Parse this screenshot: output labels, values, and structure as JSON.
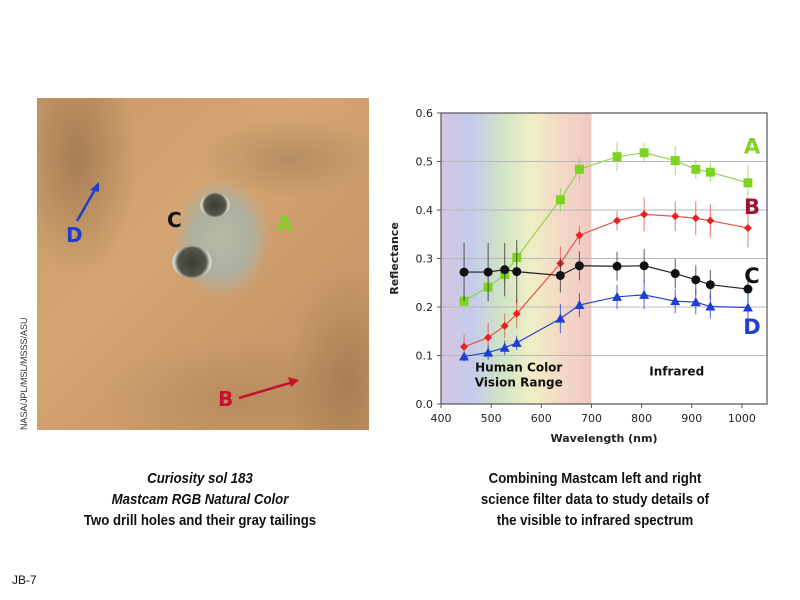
{
  "photo": {
    "labels": {
      "A": "A",
      "B": "B",
      "C": "C",
      "D": "D"
    },
    "label_colors": {
      "A": "#7ed321",
      "B": "#c8102e",
      "C": "#111111",
      "D": "#1f3fd1"
    },
    "credit": "NASA/JPL/MSL/MSSS/ASU"
  },
  "captions": {
    "left": {
      "line1": "Curiosity sol 183",
      "line2": "Mastcam RGB Natural Color",
      "line3": "Two drill holes and their gray tailings"
    },
    "right": {
      "line1": "Combining Mastcam left and right",
      "line2": "science filter data to study details of",
      "line3": "the visible to infrared spectrum"
    }
  },
  "slide_id": "JB-7",
  "chart_data": {
    "type": "line",
    "title": "",
    "xlabel": "Wavelength (nm)",
    "ylabel": "Reflectance",
    "xlim": [
      400,
      1050
    ],
    "ylim": [
      0.0,
      0.6
    ],
    "xticks": [
      400,
      500,
      600,
      700,
      800,
      900,
      1000
    ],
    "yticks": [
      0.0,
      0.1,
      0.2,
      0.3,
      0.4,
      0.5,
      0.6
    ],
    "ytick_labels": [
      "0.0",
      "0.1",
      "0.2",
      "0.3",
      "0.4",
      "0.5",
      "0.6"
    ],
    "grid": "horizontal",
    "legend_position": "inline-right",
    "x": [
      446,
      494,
      527,
      551,
      638,
      676,
      751,
      805,
      867,
      908,
      937,
      1012
    ],
    "series": [
      {
        "name": "A",
        "color": "#7ed321",
        "line_color": "#8fd454",
        "marker": "square",
        "values": [
          0.212,
          0.241,
          0.267,
          0.302,
          0.421,
          0.484,
          0.51,
          0.518,
          0.502,
          0.484,
          0.478,
          0.456
        ],
        "errors": [
          0.02,
          0.02,
          0.02,
          0.02,
          0.025,
          0.025,
          0.03,
          0.02,
          0.03,
          0.02,
          0.02,
          0.035
        ]
      },
      {
        "name": "B",
        "color": "#e8231f",
        "line_color": "#e8504a",
        "marker": "diamond",
        "values": [
          0.118,
          0.137,
          0.161,
          0.186,
          0.29,
          0.348,
          0.378,
          0.391,
          0.387,
          0.383,
          0.378,
          0.363
        ],
        "errors": [
          0.025,
          0.03,
          0.025,
          0.03,
          0.035,
          0.02,
          0.02,
          0.035,
          0.03,
          0.035,
          0.035,
          0.04
        ]
      },
      {
        "name": "C",
        "color": "#111111",
        "line_color": "#222222",
        "marker": "circle",
        "values": [
          0.272,
          0.272,
          0.277,
          0.273,
          0.265,
          0.285,
          0.284,
          0.285,
          0.269,
          0.256,
          0.246,
          0.237
        ],
        "errors": [
          0.06,
          0.06,
          0.055,
          0.065,
          0.035,
          0.03,
          0.03,
          0.035,
          0.03,
          0.03,
          0.03,
          0.035
        ]
      },
      {
        "name": "D",
        "color": "#1f3fd1",
        "line_color": "#2244cc",
        "marker": "triangle",
        "values": [
          0.098,
          0.106,
          0.116,
          0.126,
          0.176,
          0.204,
          0.221,
          0.225,
          0.212,
          0.21,
          0.201,
          0.199
        ],
        "errors": [
          0.01,
          0.015,
          0.015,
          0.015,
          0.03,
          0.025,
          0.025,
          0.03,
          0.025,
          0.025,
          0.025,
          0.03
        ]
      }
    ],
    "series_label_positions": {
      "A": 0.535,
      "B": 0.41,
      "C": 0.268,
      "D": 0.163
    },
    "series_label_colors": {
      "A": "#7ed321",
      "B": "#a0122e",
      "C": "#111111",
      "D": "#1f3fd1"
    },
    "annotations": [
      {
        "text_lines": [
          "Human Color",
          "Vision Range"
        ],
        "x": 555,
        "y": 0.03
      },
      {
        "text_lines": [
          "Infrared"
        ],
        "x": 870,
        "y": 0.03
      }
    ],
    "shaded_region": {
      "from": 400,
      "to": 700,
      "label": "Human Color Vision Range",
      "colors": [
        "#d7c4e0",
        "#c5cbed",
        "#cfe3c5",
        "#f0efc5",
        "#f3d8c6",
        "#efc9c5"
      ]
    }
  }
}
